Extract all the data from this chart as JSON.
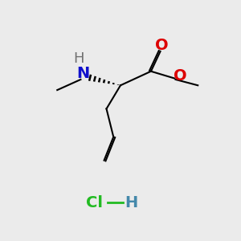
{
  "background_color": "#ebebeb",
  "colors": {
    "N": "#1010cc",
    "H_N": "#707070",
    "O": "#dd0000",
    "C": "#000000",
    "Cl": "#22bb22",
    "H_Cl": "#4488aa",
    "bond": "#000000"
  },
  "bond_width": 1.5,
  "font_size": 14
}
